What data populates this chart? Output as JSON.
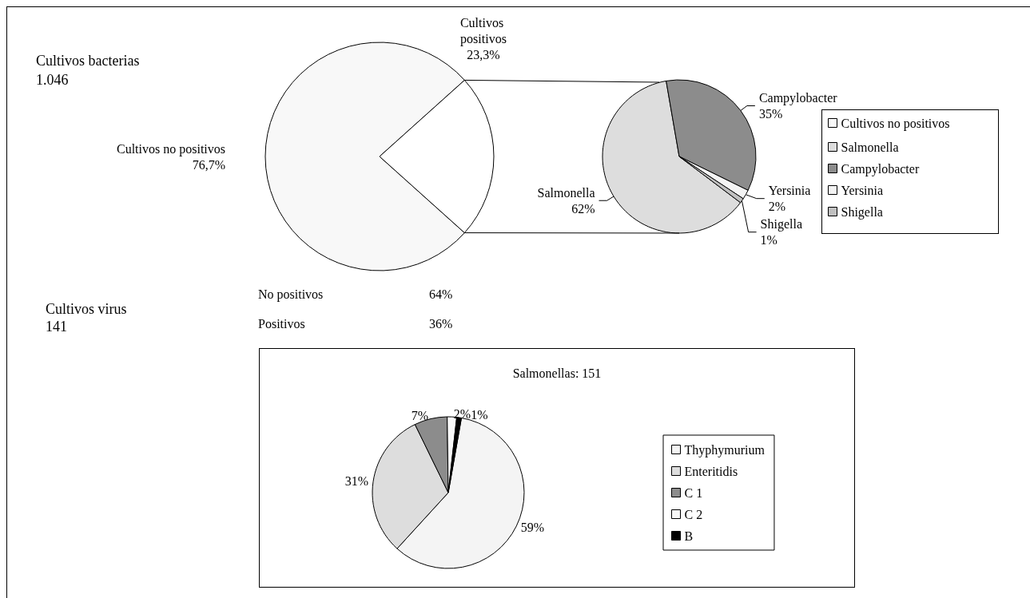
{
  "chart_data": [
    {
      "type": "pie",
      "title": "Cultivos bacterias",
      "subtitle": "1.046",
      "categories": [
        "Cultivos no positivos",
        "Cultivos positivos"
      ],
      "values": [
        76.7,
        23.3
      ],
      "value_labels": [
        "76,7%",
        "23,3%"
      ],
      "colors": [
        "#f8f8f8",
        "#ffffff"
      ],
      "legend": "right"
    },
    {
      "type": "pie",
      "categories": [
        "Salmonella",
        "Campylobacter",
        "Yersinia",
        "Shigella"
      ],
      "values": [
        62,
        35,
        2,
        1
      ],
      "value_labels": [
        "62%",
        "35%",
        "2%",
        "1%"
      ],
      "colors": [
        "#dddddd",
        "#8c8c8c",
        "#f4f4f4",
        "#c0c0c0"
      ],
      "legend": "right"
    },
    {
      "type": "other",
      "title": "Cultivos virus",
      "subtitle": "141",
      "categories": [
        "No positivos",
        "Positivos"
      ],
      "value_labels": [
        "64%",
        "36%"
      ]
    },
    {
      "type": "pie",
      "title": "Salmonellas: 151",
      "categories": [
        "Thyphymurium",
        "Enteritidis",
        "C 1",
        "C 2",
        "B"
      ],
      "values": [
        59,
        31,
        7,
        2,
        1
      ],
      "value_labels": [
        "59%",
        "31%",
        "7%",
        "2%",
        "1%"
      ],
      "colors": [
        "#f4f4f4",
        "#dddddd",
        "#8c8c8c",
        "#f8f8f8",
        "#000000"
      ],
      "legend": "right"
    }
  ]
}
